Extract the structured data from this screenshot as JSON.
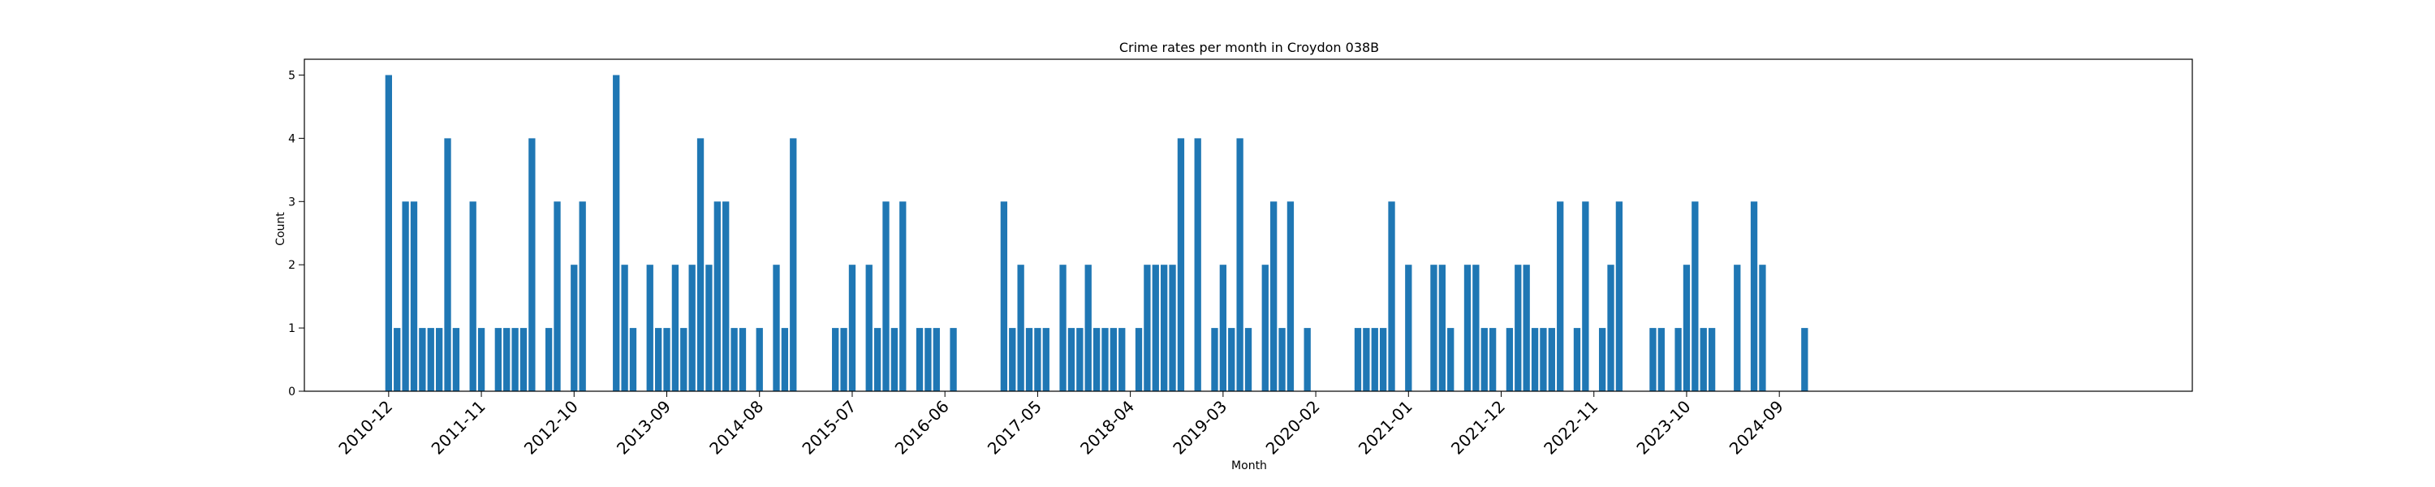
{
  "chart_data": {
    "type": "bar",
    "title": "Crime rates per month in Croydon 038B",
    "xlabel": "Month",
    "ylabel": "Count",
    "ylim": [
      0,
      5.25
    ],
    "yticks": [
      0,
      1,
      2,
      3,
      4,
      5
    ],
    "xticklabels": [
      "2010-12",
      "2011-11",
      "2012-10",
      "2013-09",
      "2014-08",
      "2015-07",
      "2016-06",
      "2017-05",
      "2018-04",
      "2019-03",
      "2020-02",
      "2021-01",
      "2021-12",
      "2022-11",
      "2023-10",
      "2024-09"
    ],
    "start_month": "2010-12",
    "bar_color": "#1f77b4",
    "grid": false,
    "legend": "none",
    "bars": [
      {
        "month": "2010-12",
        "value": 5
      },
      {
        "month": "2011-01",
        "value": 1
      },
      {
        "month": "2011-02",
        "value": 3
      },
      {
        "month": "2011-03",
        "value": 3
      },
      {
        "month": "2011-04",
        "value": 1
      },
      {
        "month": "2011-05",
        "value": 1
      },
      {
        "month": "2011-06",
        "value": 1
      },
      {
        "month": "2011-07",
        "value": 4
      },
      {
        "month": "2011-08",
        "value": 1
      },
      {
        "month": "2011-10",
        "value": 3
      },
      {
        "month": "2011-11",
        "value": 1
      },
      {
        "month": "2012-01",
        "value": 1
      },
      {
        "month": "2012-02",
        "value": 1
      },
      {
        "month": "2012-03",
        "value": 1
      },
      {
        "month": "2012-04",
        "value": 1
      },
      {
        "month": "2012-05",
        "value": 4
      },
      {
        "month": "2012-07",
        "value": 1
      },
      {
        "month": "2012-08",
        "value": 3
      },
      {
        "month": "2012-10",
        "value": 2
      },
      {
        "month": "2012-11",
        "value": 3
      },
      {
        "month": "2013-03",
        "value": 5
      },
      {
        "month": "2013-04",
        "value": 2
      },
      {
        "month": "2013-05",
        "value": 1
      },
      {
        "month": "2013-07",
        "value": 2
      },
      {
        "month": "2013-08",
        "value": 1
      },
      {
        "month": "2013-09",
        "value": 1
      },
      {
        "month": "2013-10",
        "value": 2
      },
      {
        "month": "2013-11",
        "value": 1
      },
      {
        "month": "2013-12",
        "value": 2
      },
      {
        "month": "2014-01",
        "value": 4
      },
      {
        "month": "2014-02",
        "value": 2
      },
      {
        "month": "2014-03",
        "value": 3
      },
      {
        "month": "2014-04",
        "value": 3
      },
      {
        "month": "2014-05",
        "value": 1
      },
      {
        "month": "2014-06",
        "value": 1
      },
      {
        "month": "2014-08",
        "value": 1
      },
      {
        "month": "2014-10",
        "value": 2
      },
      {
        "month": "2014-11",
        "value": 1
      },
      {
        "month": "2014-12",
        "value": 4
      },
      {
        "month": "2015-05",
        "value": 1
      },
      {
        "month": "2015-06",
        "value": 1
      },
      {
        "month": "2015-07",
        "value": 2
      },
      {
        "month": "2015-09",
        "value": 2
      },
      {
        "month": "2015-10",
        "value": 1
      },
      {
        "month": "2015-11",
        "value": 3
      },
      {
        "month": "2015-12",
        "value": 1
      },
      {
        "month": "2016-01",
        "value": 3
      },
      {
        "month": "2016-03",
        "value": 1
      },
      {
        "month": "2016-04",
        "value": 1
      },
      {
        "month": "2016-05",
        "value": 1
      },
      {
        "month": "2016-07",
        "value": 1
      },
      {
        "month": "2017-01",
        "value": 3
      },
      {
        "month": "2017-02",
        "value": 1
      },
      {
        "month": "2017-03",
        "value": 2
      },
      {
        "month": "2017-04",
        "value": 1
      },
      {
        "month": "2017-05",
        "value": 1
      },
      {
        "month": "2017-06",
        "value": 1
      },
      {
        "month": "2017-08",
        "value": 2
      },
      {
        "month": "2017-09",
        "value": 1
      },
      {
        "month": "2017-10",
        "value": 1
      },
      {
        "month": "2017-11",
        "value": 2
      },
      {
        "month": "2017-12",
        "value": 1
      },
      {
        "month": "2018-01",
        "value": 1
      },
      {
        "month": "2018-02",
        "value": 1
      },
      {
        "month": "2018-03",
        "value": 1
      },
      {
        "month": "2018-05",
        "value": 1
      },
      {
        "month": "2018-06",
        "value": 2
      },
      {
        "month": "2018-07",
        "value": 2
      },
      {
        "month": "2018-08",
        "value": 2
      },
      {
        "month": "2018-09",
        "value": 2
      },
      {
        "month": "2018-10",
        "value": 4
      },
      {
        "month": "2018-12",
        "value": 4
      },
      {
        "month": "2019-02",
        "value": 1
      },
      {
        "month": "2019-03",
        "value": 2
      },
      {
        "month": "2019-04",
        "value": 1
      },
      {
        "month": "2019-05",
        "value": 4
      },
      {
        "month": "2019-06",
        "value": 1
      },
      {
        "month": "2019-08",
        "value": 2
      },
      {
        "month": "2019-09",
        "value": 3
      },
      {
        "month": "2019-10",
        "value": 1
      },
      {
        "month": "2019-11",
        "value": 3
      },
      {
        "month": "2020-01",
        "value": 1
      },
      {
        "month": "2020-07",
        "value": 1
      },
      {
        "month": "2020-08",
        "value": 1
      },
      {
        "month": "2020-09",
        "value": 1
      },
      {
        "month": "2020-10",
        "value": 1
      },
      {
        "month": "2020-11",
        "value": 3
      },
      {
        "month": "2021-01",
        "value": 2
      },
      {
        "month": "2021-04",
        "value": 2
      },
      {
        "month": "2021-05",
        "value": 2
      },
      {
        "month": "2021-06",
        "value": 1
      },
      {
        "month": "2021-08",
        "value": 2
      },
      {
        "month": "2021-09",
        "value": 2
      },
      {
        "month": "2021-10",
        "value": 1
      },
      {
        "month": "2021-11",
        "value": 1
      },
      {
        "month": "2022-01",
        "value": 1
      },
      {
        "month": "2022-02",
        "value": 2
      },
      {
        "month": "2022-03",
        "value": 2
      },
      {
        "month": "2022-04",
        "value": 1
      },
      {
        "month": "2022-05",
        "value": 1
      },
      {
        "month": "2022-06",
        "value": 1
      },
      {
        "month": "2022-07",
        "value": 3
      },
      {
        "month": "2022-09",
        "value": 1
      },
      {
        "month": "2022-10",
        "value": 3
      },
      {
        "month": "2022-12",
        "value": 1
      },
      {
        "month": "2023-01",
        "value": 2
      },
      {
        "month": "2023-02",
        "value": 3
      },
      {
        "month": "2023-06",
        "value": 1
      },
      {
        "month": "2023-07",
        "value": 1
      },
      {
        "month": "2023-09",
        "value": 1
      },
      {
        "month": "2023-10",
        "value": 2
      },
      {
        "month": "2023-11",
        "value": 3
      },
      {
        "month": "2023-12",
        "value": 1
      },
      {
        "month": "2024-01",
        "value": 1
      },
      {
        "month": "2024-04",
        "value": 2
      },
      {
        "month": "2024-06",
        "value": 3
      },
      {
        "month": "2024-07",
        "value": 2
      },
      {
        "month": "2024-12",
        "value": 1
      }
    ]
  }
}
